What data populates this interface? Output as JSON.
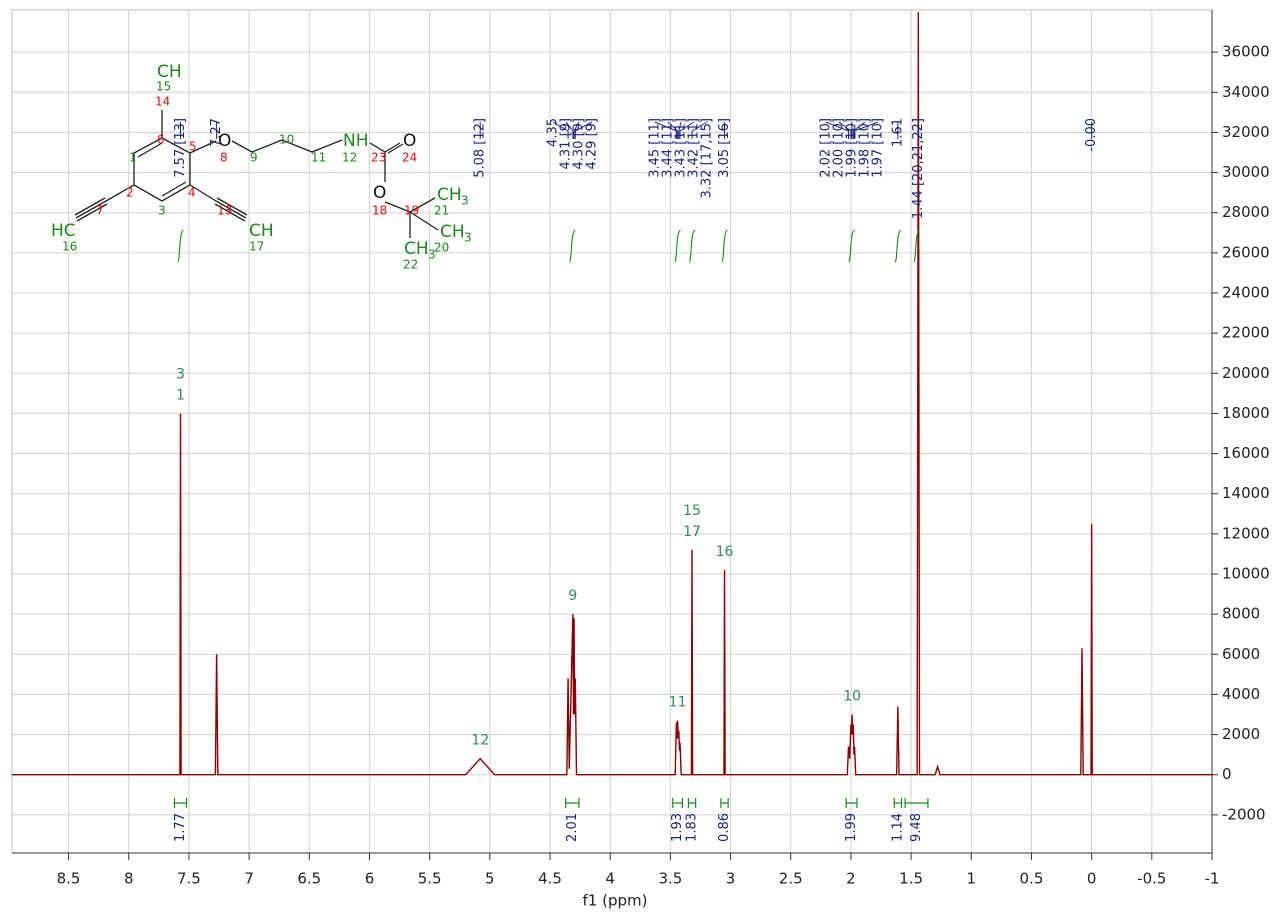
{
  "chart_data": {
    "type": "line",
    "x_label": "f1 (ppm)",
    "xlim": [
      8.97,
      -1.0
    ],
    "ylim": [
      -3900,
      38100
    ],
    "xticks": [
      8.5,
      8.0,
      7.5,
      7.0,
      6.5,
      6.0,
      5.5,
      5.0,
      4.5,
      4.0,
      3.5,
      3.0,
      2.5,
      2.0,
      1.5,
      1.0,
      0.5,
      0.0,
      -0.5,
      -1.0
    ],
    "yticks": [
      -2000,
      0,
      2000,
      4000,
      6000,
      8000,
      10000,
      12000,
      14000,
      16000,
      18000,
      20000,
      22000,
      24000,
      26000,
      28000,
      30000,
      32000,
      34000,
      36000
    ],
    "grid": true,
    "series": [
      {
        "color": "#8b0000",
        "x": [
          8.97,
          7.6,
          7.575,
          7.57,
          7.565,
          7.28,
          7.27,
          7.26,
          5.2,
          5.08,
          4.96,
          4.36,
          4.35,
          4.34,
          4.31,
          4.305,
          4.3,
          4.295,
          4.29,
          4.28,
          3.46,
          3.45,
          3.445,
          3.44,
          3.435,
          3.43,
          3.425,
          3.42,
          3.41,
          3.325,
          3.32,
          3.315,
          3.055,
          3.05,
          3.045,
          2.03,
          2.02,
          2.01,
          2.0,
          1.995,
          1.99,
          1.985,
          1.98,
          1.975,
          1.97,
          1.96,
          1.62,
          1.61,
          1.6,
          1.45,
          1.44,
          1.43,
          1.3,
          1.28,
          1.26,
          0.09,
          0.08,
          0.07,
          0.005,
          0.0,
          -0.005,
          -1.0
        ],
        "values": [
          0,
          0,
          0,
          18000,
          0,
          0,
          6000,
          0,
          0,
          800,
          0,
          0,
          4800,
          300,
          8000,
          3000,
          7800,
          3000,
          4800,
          0,
          0,
          2600,
          1800,
          2700,
          1800,
          2200,
          1200,
          1600,
          0,
          0,
          11200,
          0,
          0,
          10200,
          0,
          0,
          1400,
          800,
          2500,
          2000,
          3000,
          2000,
          2500,
          1000,
          1400,
          0,
          0,
          3400,
          0,
          0,
          38000,
          0,
          0,
          400,
          0,
          0,
          6300,
          0,
          0,
          12500,
          0,
          0
        ]
      }
    ],
    "peak_labels": [
      {
        "text": "7.57 [13]",
        "x": 7.57
      },
      {
        "text": "7.27",
        "x": 7.27
      },
      {
        "text": "5.08 [12]",
        "x": 5.08
      },
      {
        "text": "4.35",
        "x": 4.35
      },
      {
        "text": "4.31 [9]",
        "x": 4.31
      },
      {
        "text": "4.30 [9]",
        "x": 4.3
      },
      {
        "text": "4.29 [9]",
        "x": 4.29
      },
      {
        "text": "3.45 [11]",
        "x": 3.45
      },
      {
        "text": "3.44 [11]",
        "x": 3.44
      },
      {
        "text": "3.43 [11]",
        "x": 3.43
      },
      {
        "text": "3.42 [11]",
        "x": 3.42
      },
      {
        "text": "3.32 [17,15]",
        "x": 3.32
      },
      {
        "text": "3.05 [16]",
        "x": 3.05
      },
      {
        "text": "2.02 [10]",
        "x": 2.02
      },
      {
        "text": "2.00 [10]",
        "x": 2.0
      },
      {
        "text": "1.99 [10]",
        "x": 1.99
      },
      {
        "text": "1.98 [10]",
        "x": 1.98
      },
      {
        "text": "1.97 [10]",
        "x": 1.97
      },
      {
        "text": "1.61",
        "x": 1.61
      },
      {
        "text": "1.44 [20,21,22]",
        "x": 1.44
      },
      {
        "text": "-0.00",
        "x": 0.0
      }
    ],
    "integrals": [
      {
        "value": 1.77,
        "from": 7.62,
        "to": 7.52
      },
      {
        "value": 2.01,
        "from": 4.37,
        "to": 4.26
      },
      {
        "value": 1.93,
        "from": 3.48,
        "to": 3.4
      },
      {
        "value": 1.83,
        "from": 3.35,
        "to": 3.29
      },
      {
        "value": 0.86,
        "from": 3.08,
        "to": 3.02
      },
      {
        "value": 1.99,
        "from": 2.04,
        "to": 1.95
      },
      {
        "value": 1.14,
        "from": 1.64,
        "to": 1.58
      },
      {
        "value": 9.48,
        "from": 1.55,
        "to": 1.36
      }
    ],
    "annotations": [
      {
        "lines": [
          "3",
          "1"
        ],
        "x": 7.57
      },
      {
        "lines": [
          "12"
        ],
        "x": 5.08
      },
      {
        "lines": [
          "9"
        ],
        "x": 4.31
      },
      {
        "lines": [
          "11"
        ],
        "x": 3.44
      },
      {
        "lines": [
          "15",
          "17"
        ],
        "x": 3.32
      },
      {
        "lines": [
          "16"
        ],
        "x": 3.05
      },
      {
        "lines": [
          "10"
        ],
        "x": 1.99
      }
    ]
  },
  "structure": {
    "labels": [
      "CH",
      "15",
      "14",
      "6",
      "5",
      "O",
      "8",
      "9",
      "10",
      "11",
      "NH",
      "12",
      "O",
      "23",
      "24",
      "1",
      "2",
      "4",
      "3",
      "7",
      "13",
      "O",
      "18",
      "19",
      "CH",
      "3",
      "21",
      "CH",
      "3",
      "HC",
      "16",
      "CH",
      "17",
      "CH",
      "3",
      "20",
      "22"
    ]
  }
}
